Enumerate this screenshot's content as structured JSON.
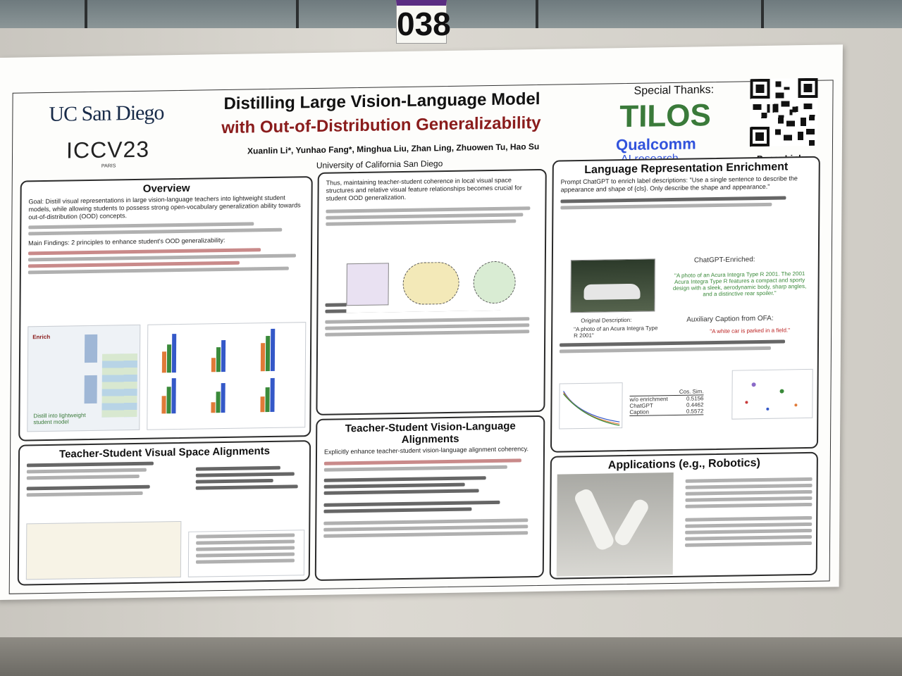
{
  "booth_number": "038",
  "poster": {
    "logo_ucsd": "UC San Diego",
    "logo_iccv": "ICCV23",
    "logo_paris": "PARIS",
    "title_line1": "Distilling Large Vision-Language Model",
    "title_line2": "with Out-of-Distribution Generalizability",
    "authors": "Xuanlin Li*, Yunhao Fang*, Minghua Liu, Zhan Ling, Zhuowen Tu, Hao Su",
    "affiliation": "University of California San Diego",
    "special_thanks": "Special Thanks:",
    "sponsor1": "TILOS",
    "sponsor2": "Qualcomm",
    "sponsor2_sub": "AI research",
    "qr_label": "Paper Link"
  },
  "sections": {
    "overview_title": "Overview",
    "overview_goal": "Goal: Distill visual representations in large vision-language teachers into lightweight student models, while allowing students to possess strong open-vocabulary generalization ability towards out-of-distribution (OOD) concepts.",
    "overview_findings": "Main Findings: 2 principles to enhance student's OOD generalizability:",
    "overview_enrich": "Enrich",
    "overview_distill": "Distill into lightweight student model",
    "visual_title": "Teacher-Student Visual Space Alignments",
    "middle_intro": "Thus, maintaining teacher-student coherence in local visual space structures and relative visual feature relationships becomes crucial for student OOD generalization.",
    "vl_title": "Teacher-Student Vision-Language Alignments",
    "vl_intro": "Explicitly enhance teacher-student vision-language alignment coherency.",
    "lang_title": "Language Representation Enrichment",
    "lang_prompt": "Prompt ChatGPT to enrich label descriptions: \"Use a single sentence to describe the appearance and shape of {cls}. Only describe the shape and appearance.\"",
    "lang_enriched": "ChatGPT-Enriched:",
    "lang_enriched_text": "\"A photo of an Acura Integra Type R 2001. The 2001 Acura Integra Type R features a compact and sporty design with a sleek, aerodynamic body, sharp angles, and a distinctive rear spoiler.\"",
    "lang_original": "Original Description:",
    "lang_original_text": "\"A photo of an Acura Integra Type R 2001\"",
    "lang_ofa": "Auxiliary Caption from OFA:",
    "lang_ofa_text": "\"A white car is parked in a field.\"",
    "apps_title": "Applications (e.g., Robotics)",
    "table_cos_header": "Cos. Sim.",
    "table_rows": [
      {
        "label": "w/o enrichment",
        "value": "0.5156"
      },
      {
        "label": "ChatGPT",
        "value": "0.4462"
      },
      {
        "label": "Caption",
        "value": "0.5572"
      }
    ]
  },
  "colors": {
    "title_red": "#8a1c1c",
    "qualcomm_blue": "#3253dc",
    "tilos_green": "#3a7a3a",
    "booth_purple": "#5a2d82"
  }
}
